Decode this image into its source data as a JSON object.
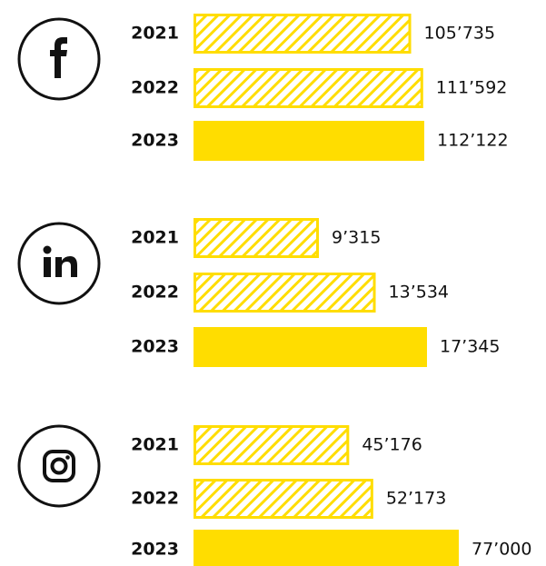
{
  "chart_data": [
    {
      "type": "bar",
      "color": "#ffdd00",
      "hatch": [
        true,
        true,
        false
      ],
      "categories": [
        "2021",
        "2022",
        "2023"
      ],
      "values": [
        105735,
        111592,
        112122
      ],
      "value_labels": [
        "105’735",
        "111’592",
        "112’122"
      ]
    },
    {
      "type": "bar",
      "color": "#ffdd00",
      "hatch": [
        true,
        true,
        false
      ],
      "categories": [
        "2021",
        "2022",
        "2023"
      ],
      "values": [
        9315,
        13534,
        17345
      ],
      "value_labels": [
        "9’315",
        "13’534",
        "17’345"
      ]
    },
    {
      "type": "bar",
      "color": "#ffdd00",
      "hatch": [
        true,
        true,
        false
      ],
      "categories": [
        "2021",
        "2022",
        "2023"
      ],
      "values": [
        45176,
        52173,
        77000
      ],
      "value_labels": [
        "45’176",
        "52’173",
        "77’000"
      ]
    }
  ]
}
